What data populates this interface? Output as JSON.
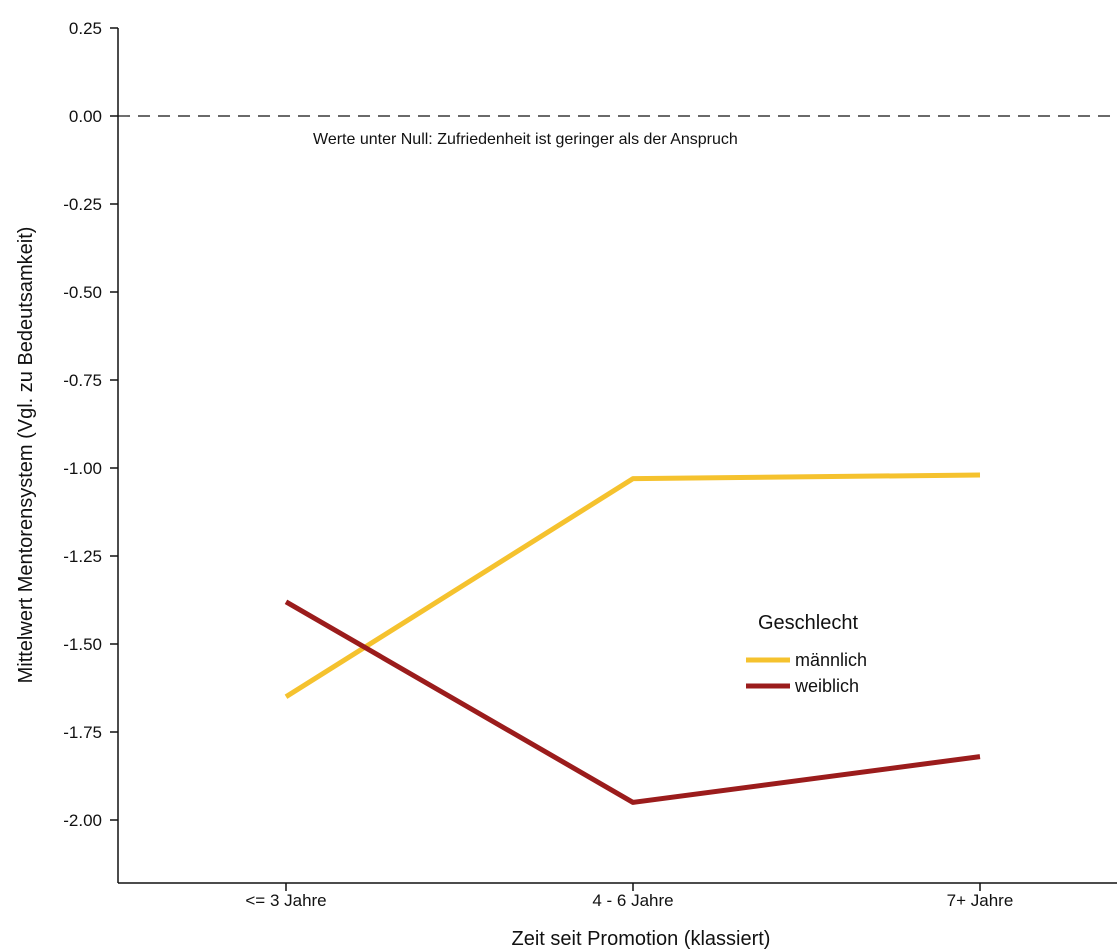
{
  "chart_data": {
    "type": "line",
    "title": "",
    "xlabel": "Zeit seit Promotion (klassiert)",
    "ylabel": "Mittelwert Mentorensystem (Vgl. zu Bedeutsamkeit)",
    "categories": [
      "<= 3 Jahre",
      "4 - 6 Jahre",
      "7+ Jahre"
    ],
    "ylim": [
      -2.1,
      0.25
    ],
    "yticks": [
      "0.25",
      "0.00",
      "-0.25",
      "-0.50",
      "-0.75",
      "-1.00",
      "-1.25",
      "-1.50",
      "-1.75",
      "-2.00"
    ],
    "reference_line": {
      "y": 0.0,
      "style": "dashed"
    },
    "annotation": "Werte unter Null: Zufriedenheit ist geringer als der Anspruch",
    "legend": {
      "title": "Geschlecht",
      "position": "right"
    },
    "grid": false,
    "series": [
      {
        "name": "männlich",
        "color": "#F5C22E",
        "values": [
          -1.65,
          -1.03,
          -1.02
        ]
      },
      {
        "name": "weiblich",
        "color": "#9B1C1C",
        "values": [
          -1.38,
          -1.95,
          -1.82
        ]
      }
    ]
  }
}
